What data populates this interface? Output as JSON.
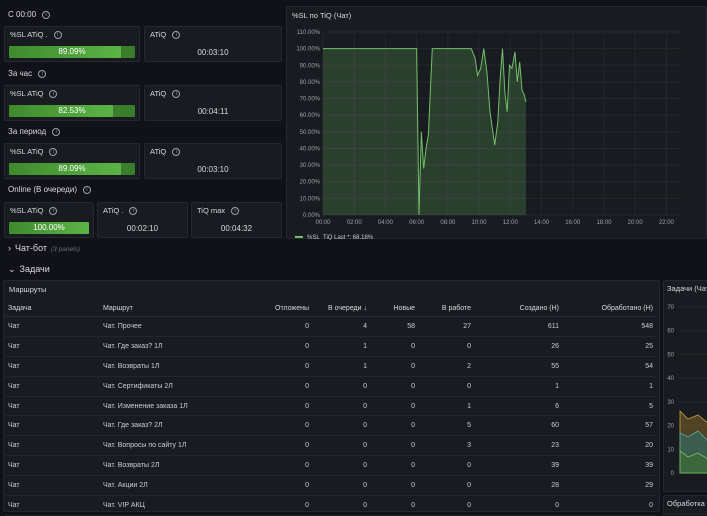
{
  "sections": {
    "s1": "С 00:00",
    "s2": "За час",
    "s3": "За период",
    "s4": "Online (В очереди)"
  },
  "stats": {
    "s1_sl_title": "%SL ATiQ .",
    "s1_sl_value": "89.09%",
    "s1_sl_fraction": 0.8909,
    "s1_atiq_title": "ATiQ",
    "s1_atiq_value": "00:03:10",
    "s2_sl_title": "%SL ATiQ",
    "s2_sl_value": "82.53%",
    "s2_sl_fraction": 0.8253,
    "s2_atiq_title": "ATiQ",
    "s2_atiq_value": "00:04:11",
    "s3_sl_title": "%SL ATiQ",
    "s3_sl_value": "89.09%",
    "s3_sl_fraction": 0.8909,
    "s3_atiq_title": "ATiQ",
    "s3_atiq_value": "00:03:10",
    "s4_sl_title": "%SL ATiQ",
    "s4_sl_value": "100.00%",
    "s4_sl_fraction": 1.0,
    "s4_atiq_title": "ATiQ .",
    "s4_atiq_value": "00:02:10",
    "s4_tiqmax_title": "TiQ max",
    "s4_tiqmax_value": "00:04:32"
  },
  "chart_data": {
    "type": "area",
    "title": "%SL по TiQ (Чат)",
    "x_ticks": [
      "00:00",
      "02:00",
      "04:00",
      "06:00",
      "08:00",
      "10:00",
      "12:00",
      "14:00",
      "16:00",
      "18:00",
      "20:00",
      "22:00"
    ],
    "y_ticks": [
      "0.00%",
      "10.00%",
      "20.00%",
      "30.00%",
      "40.00%",
      "50.00%",
      "60.00%",
      "70.00%",
      "80.00%",
      "90.00%",
      "100.00%",
      "110.00%"
    ],
    "ylim": [
      0,
      110
    ],
    "xlim": [
      0,
      23
    ],
    "series": [
      {
        "name": "%SL_TiQ",
        "legend_text": "%SL_TiQ   Last *: 68.18%",
        "color": "#73bf69",
        "x": [
          0,
          6.0,
          6.15,
          6.3,
          6.45,
          6.6,
          6.75,
          7.0,
          7.2,
          7.5,
          8.0,
          9.5,
          9.75,
          9.9,
          10.1,
          10.3,
          10.5,
          10.7,
          11.0,
          11.2,
          11.35,
          11.5,
          11.65,
          11.8,
          11.95,
          12.1,
          12.3,
          12.45,
          12.6,
          12.75,
          12.9,
          13.0
        ],
        "y": [
          100,
          100,
          0,
          50,
          28,
          40,
          48,
          100,
          100,
          100,
          100,
          100,
          94,
          84,
          88,
          100,
          86,
          62,
          42,
          56,
          82,
          100,
          74,
          62,
          90,
          88,
          98,
          80,
          92,
          75,
          72,
          68
        ]
      }
    ]
  },
  "rows": {
    "chatbot_title": "Чат-бот",
    "chatbot_panels": "(3 panels)",
    "tasks_title": "Задачи"
  },
  "routes": {
    "title": "Маршруты",
    "columns": [
      "Задача",
      "Маршрут",
      "Отложены",
      "В очереди ↓",
      "Новые",
      "В работе",
      "Создано (Н)",
      "Обработано (Н)"
    ],
    "rows": [
      [
        "Чат",
        "Чат. Прочее",
        "0",
        "4",
        "58",
        "27",
        "611",
        "548"
      ],
      [
        "Чат",
        "Чат. Где заказ? 1Л",
        "0",
        "1",
        "0",
        "0",
        "26",
        "25"
      ],
      [
        "Чат",
        "Чат. Возвраты 1Л",
        "0",
        "1",
        "0",
        "2",
        "55",
        "54"
      ],
      [
        "Чат",
        "Чат. Сертификаты 2Л",
        "0",
        "0",
        "0",
        "0",
        "1",
        "1"
      ],
      [
        "Чат",
        "Чат. Изменение заказа 1Л",
        "0",
        "0",
        "0",
        "1",
        "6",
        "5"
      ],
      [
        "Чат",
        "Чат. Где заказ? 2Л",
        "0",
        "0",
        "0",
        "5",
        "60",
        "57"
      ],
      [
        "Чат",
        "Чат. Вопросы по сайту 1Л",
        "0",
        "0",
        "0",
        "3",
        "23",
        "20"
      ],
      [
        "Чат",
        "Чат. Возвраты 2Л",
        "0",
        "0",
        "0",
        "0",
        "39",
        "39"
      ],
      [
        "Чат",
        "Чат. Акции 2Л",
        "0",
        "0",
        "0",
        "0",
        "28",
        "29"
      ],
      [
        "Чат",
        "Чат. VIP АКЦ",
        "0",
        "0",
        "0",
        "0",
        "0",
        "0"
      ]
    ]
  },
  "side_panel": {
    "title": "Задачи (Чат)",
    "y_ticks": [
      "70",
      "60",
      "50",
      "40",
      "30",
      "20",
      "10",
      "0"
    ],
    "bottom_title": "Обработка"
  }
}
